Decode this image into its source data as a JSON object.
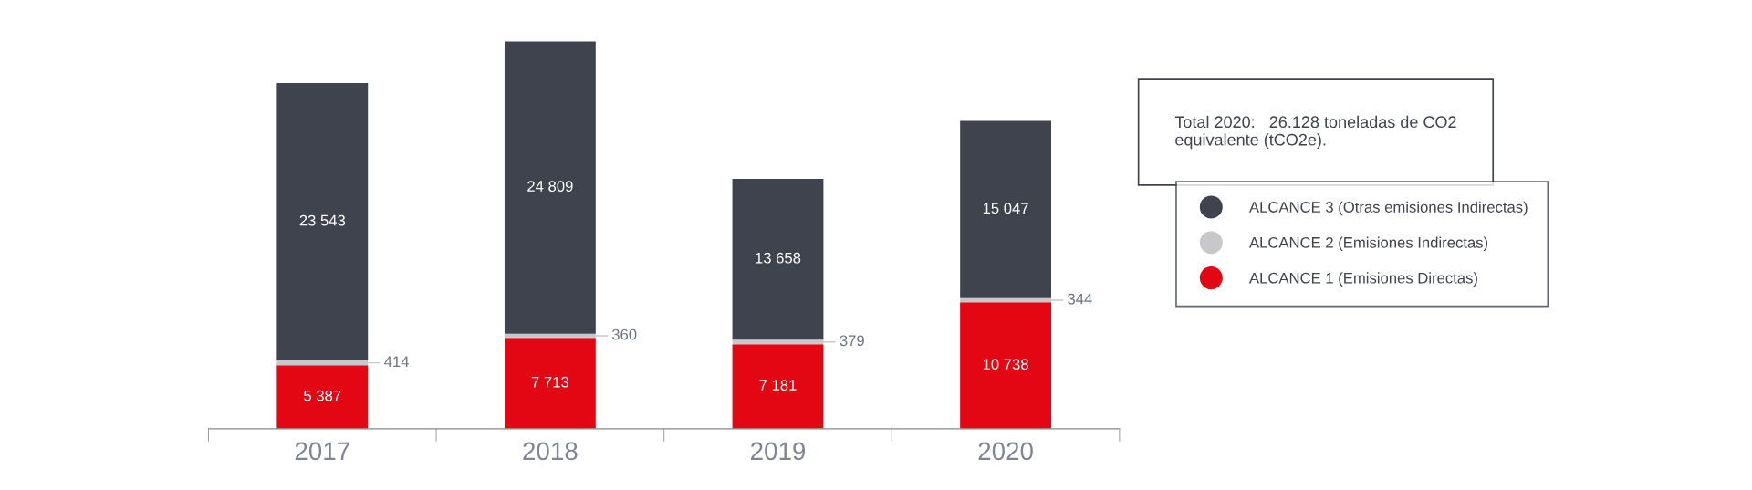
{
  "chart_data": {
    "type": "bar",
    "stacked": true,
    "categories": [
      "2017",
      "2018",
      "2019",
      "2020"
    ],
    "series": [
      {
        "name": "ALCANCE 1 (Emisiones Directas)",
        "color": "#e30613",
        "values": [
          5387,
          7713,
          7181,
          10738
        ],
        "value_labels": [
          "5 387",
          "7 713",
          "7 181",
          "10 738"
        ]
      },
      {
        "name": "ALCANCE 2 (Emisiones Indirectas)",
        "color": "#c8c8ca",
        "values": [
          414,
          360,
          379,
          344
        ],
        "value_labels": [
          "414",
          "360",
          "379",
          "344"
        ]
      },
      {
        "name": "ALCANCE 3 (Otras emisiones Indirectas)",
        "color": "#3f434e",
        "values": [
          23543,
          24809,
          13658,
          15047
        ],
        "value_labels": [
          "23 543",
          "24 809",
          "13 658",
          "15 047"
        ]
      }
    ],
    "legend": "right",
    "grid": false,
    "annotations": [
      "Total 2020:   26.128 toneladas de CO2\nequivalente (tCO2e)."
    ]
  }
}
